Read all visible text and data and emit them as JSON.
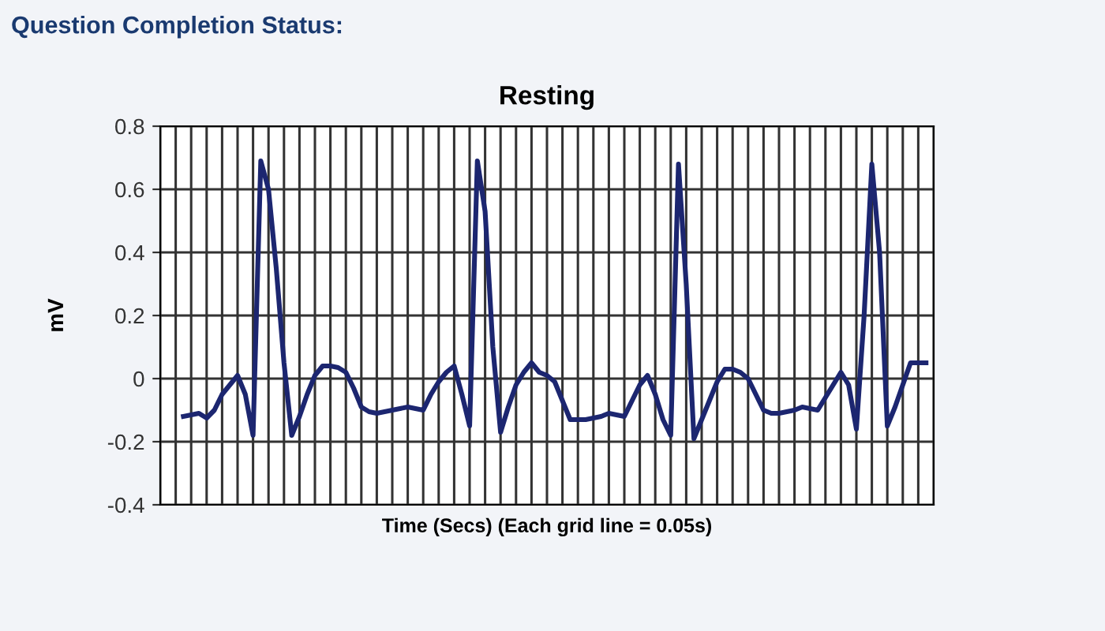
{
  "chart_data": {
    "type": "line",
    "title": "Resting",
    "xlabel": "Time (Secs) (Each grid line = 0.05s)",
    "ylabel": "mV",
    "annotations": [
      "Question Completion Status:"
    ],
    "categories": [
      null,
      null,
      null,
      null,
      null,
      null,
      null,
      null,
      null,
      null,
      null,
      null,
      null,
      null,
      null,
      null,
      null,
      null,
      null,
      null,
      null,
      null,
      null,
      null,
      null,
      null,
      null,
      null,
      null,
      null,
      null,
      null,
      null,
      null,
      null,
      null,
      null,
      null,
      null,
      null,
      null,
      null,
      null,
      null,
      null,
      null,
      null,
      null,
      null,
      null,
      null,
      null,
      null,
      null,
      null,
      null,
      null,
      null,
      null,
      null,
      null,
      null,
      null,
      null,
      null,
      null,
      null,
      null,
      null,
      null,
      null,
      null,
      null,
      null,
      null,
      null,
      null,
      null,
      null,
      null,
      null,
      null,
      null,
      null,
      null,
      null,
      null,
      null,
      null,
      null,
      null,
      null,
      null,
      null,
      null,
      null,
      null,
      null,
      null,
      null,
      null
    ],
    "series": [
      {
        "color": "#1c2670",
        "values": [
          null,
          null,
          null,
          -0.12,
          -0.115,
          -0.11,
          -0.125,
          -0.1,
          -0.05,
          -0.02,
          0.01,
          -0.05,
          -0.18,
          0.69,
          0.6,
          0.35,
          0.05,
          -0.18,
          -0.12,
          -0.05,
          0.01,
          0.04,
          0.04,
          0.035,
          0.02,
          -0.03,
          -0.09,
          -0.105,
          -0.11,
          -0.105,
          -0.1,
          -0.095,
          -0.09,
          -0.095,
          -0.1,
          -0.05,
          -0.01,
          0.02,
          0.04,
          -0.05,
          -0.15,
          0.69,
          0.53,
          0.1,
          -0.17,
          -0.09,
          -0.02,
          0.02,
          0.05,
          0.02,
          0.01,
          -0.01,
          -0.07,
          -0.13,
          -0.13,
          -0.13,
          -0.125,
          -0.12,
          -0.11,
          -0.115,
          -0.12,
          -0.07,
          -0.02,
          0.01,
          -0.05,
          -0.13,
          -0.18,
          0.68,
          0.3,
          -0.19,
          -0.13,
          -0.07,
          -0.01,
          0.03,
          0.03,
          0.02,
          0.0,
          -0.05,
          -0.1,
          -0.11,
          -0.11,
          -0.105,
          -0.1,
          -0.09,
          -0.095,
          -0.1,
          -0.06,
          -0.02,
          0.02,
          -0.02,
          -0.16,
          0.2,
          0.68,
          0.4,
          -0.15,
          -0.09,
          -0.02,
          0.05,
          0.05,
          0.05,
          null
        ]
      }
    ],
    "ylim": [
      -0.4,
      0.8
    ],
    "yticks": [
      -0.4,
      -0.2,
      0,
      0.2,
      0.4,
      0.6,
      0.8
    ],
    "grid": true,
    "tick_labels": "y",
    "marker": "none",
    "line_style": "solid"
  }
}
